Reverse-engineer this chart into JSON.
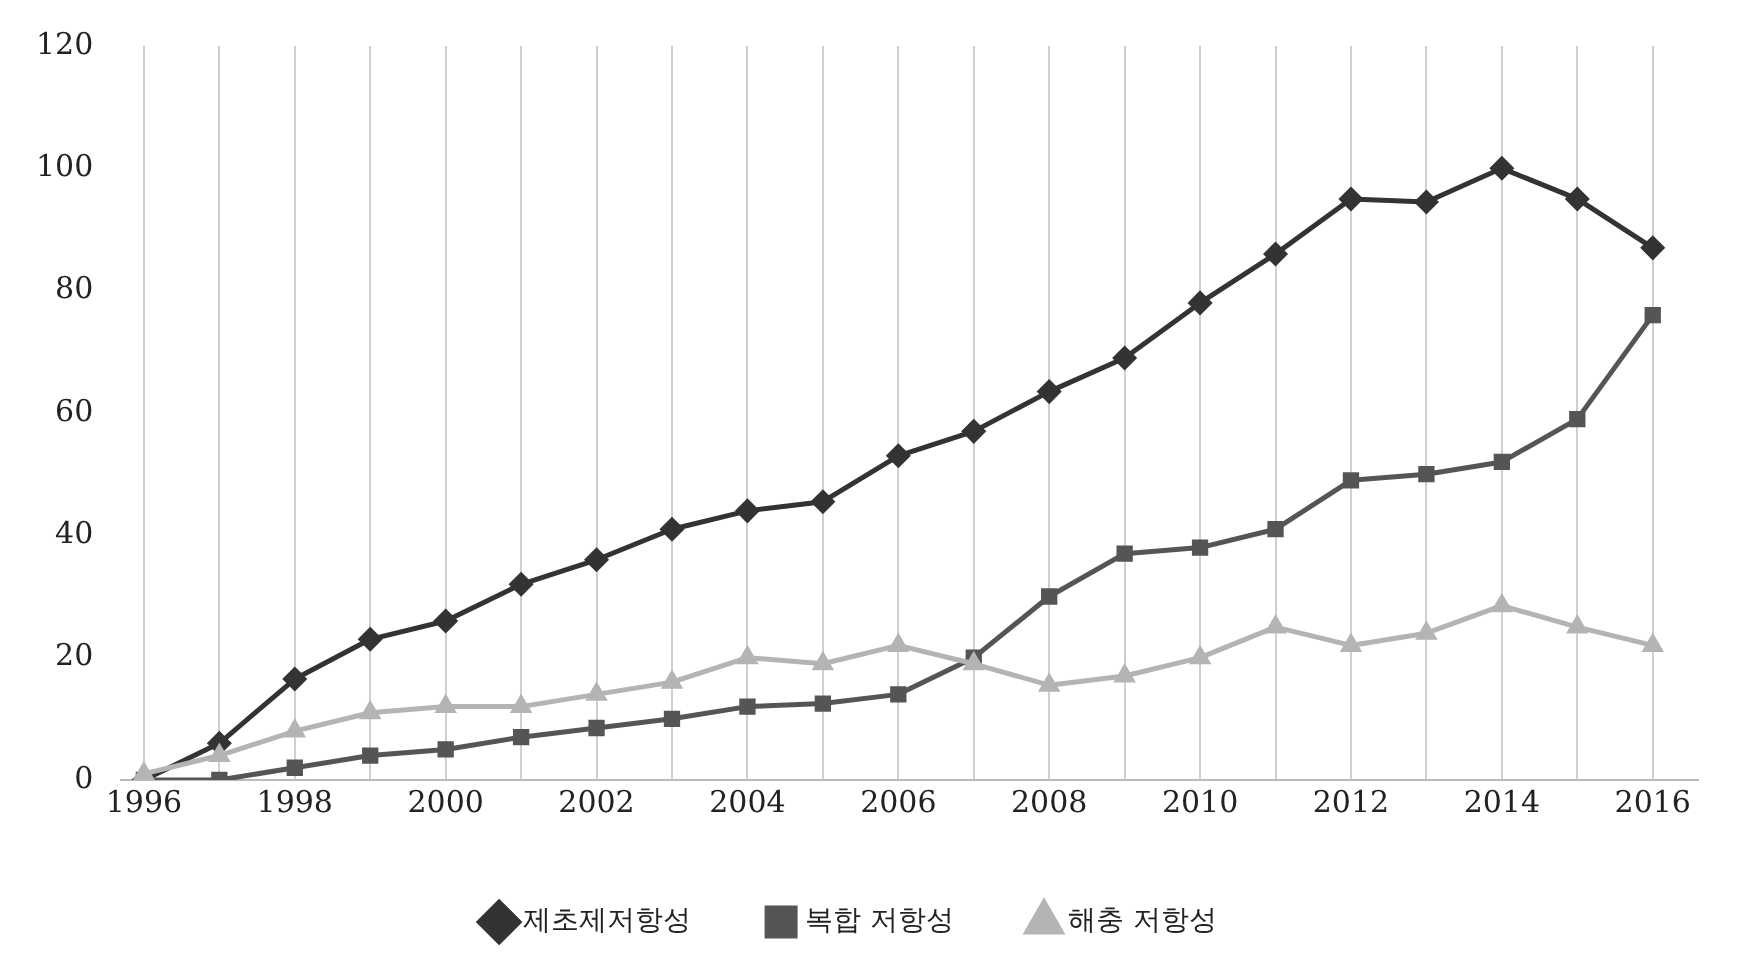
{
  "chart_data": {
    "type": "line",
    "x": [
      1996,
      1997,
      1998,
      1999,
      2000,
      2001,
      2002,
      2003,
      2004,
      2005,
      2006,
      2007,
      2008,
      2009,
      2010,
      2011,
      2012,
      2013,
      2014,
      2015,
      2016
    ],
    "series": [
      {
        "name": "제초제저항성",
        "color": "#333333",
        "marker": "diamond",
        "values": [
          0,
          6,
          16.5,
          23,
          26,
          32,
          36,
          41,
          44,
          45.5,
          53,
          57,
          63.5,
          69,
          78,
          86,
          95,
          94.5,
          100,
          95,
          87
        ]
      },
      {
        "name": "복합 저항성",
        "color": "#555555",
        "marker": "square",
        "values": [
          0,
          0,
          2,
          4,
          5,
          7,
          8.5,
          10,
          12,
          12.5,
          14,
          20,
          30,
          37,
          38,
          41,
          49,
          50,
          52,
          59,
          76
        ]
      },
      {
        "name": "해충 저항성",
        "color": "#b4b4b4",
        "marker": "triangle",
        "values": [
          1,
          4,
          8,
          11,
          12,
          12,
          14,
          16,
          20,
          19,
          22,
          19,
          15.5,
          17,
          20,
          25,
          22,
          24,
          28.5,
          25,
          22
        ]
      }
    ],
    "xlim": [
      1995.7,
      2016.6
    ],
    "xticks": [
      1996,
      {
        "value": 1997,
        "label": null
      },
      1998,
      {
        "value": 1999,
        "label": null
      },
      2000,
      {
        "value": 2001,
        "label": null
      },
      2002,
      {
        "value": 2003,
        "label": null
      },
      2004,
      {
        "value": 2005,
        "label": null
      },
      2006,
      {
        "value": 2007,
        "label": null
      },
      2008,
      {
        "value": 2009,
        "label": null
      },
      2010,
      {
        "value": 2011,
        "label": null
      },
      2012,
      {
        "value": 2013,
        "label": null
      },
      2014,
      {
        "value": 2015,
        "label": null
      },
      2016
    ],
    "ylim": [
      0,
      120
    ],
    "yticks": [
      0,
      20,
      40,
      60,
      80,
      100,
      120
    ],
    "grid": "x",
    "legend": "bottom",
    "line_style": "solid"
  }
}
